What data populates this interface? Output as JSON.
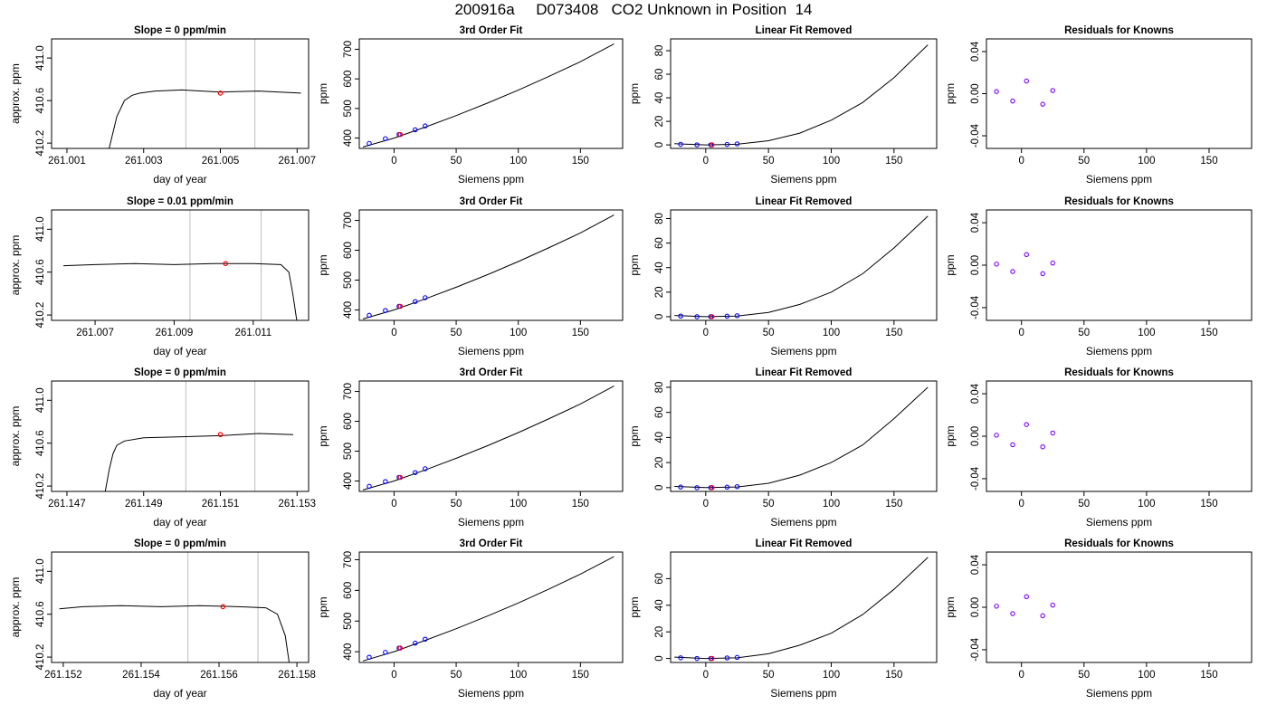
{
  "figure": {
    "title": "200916a     D073408   CO2 Unknown in Position  14"
  },
  "colors": {
    "axes": "#000000",
    "trace": "#000000",
    "known_points": "#0000ff",
    "unknown_point": "#ff0000",
    "residual_points": "#8000ff",
    "window_lines": "#bebebe"
  },
  "chart_data": [
    {
      "type": "line",
      "row": 1,
      "column": 1,
      "title": "Slope =  0  ppm/min",
      "xlabel": "day of year",
      "ylabel": "approx. ppm",
      "x_ticks": [
        "261.001",
        "261.003",
        "261.005",
        "261.007"
      ],
      "x_tick_values": [
        261.001,
        261.003,
        261.005,
        261.007
      ],
      "y_ticks": [
        "410.2",
        "410.6",
        "411.0"
      ],
      "y_tick_values": [
        410.2,
        410.6,
        411.0
      ],
      "xlim": [
        261.0006,
        261.0073
      ],
      "ylim": [
        410.15,
        411.18
      ],
      "grid": false,
      "window_x": [
        261.0041,
        261.0059
      ],
      "unknown_point": {
        "x": 261.005,
        "y": 410.67
      },
      "trace": {
        "x": [
          261.0021,
          261.0023,
          261.0025,
          261.0027,
          261.0029,
          261.0033,
          261.004,
          261.005,
          261.006,
          261.0071
        ],
        "y": [
          410.15,
          410.45,
          410.6,
          410.65,
          410.67,
          410.69,
          410.7,
          410.68,
          410.69,
          410.67
        ]
      }
    },
    {
      "type": "line",
      "row": 1,
      "column": 2,
      "title": "3rd Order Fit",
      "xlabel": "Siemens ppm",
      "ylabel": "ppm",
      "x_ticks": [
        "0",
        "50",
        "100",
        "150"
      ],
      "x_tick_values": [
        0,
        50,
        100,
        150
      ],
      "y_ticks": [
        "400",
        "500",
        "600",
        "700"
      ],
      "y_tick_values": [
        400,
        500,
        600,
        700
      ],
      "xlim": [
        -28,
        184
      ],
      "ylim": [
        365,
        735
      ],
      "grid": false,
      "fit_curve": {
        "x": [
          -25,
          0,
          25,
          50,
          75,
          100,
          125,
          150,
          177
        ],
        "y": [
          370,
          400,
          437,
          476,
          518,
          562,
          609,
          658,
          718
        ]
      },
      "known_points": {
        "x": [
          -20,
          -7,
          4,
          17,
          25
        ],
        "y": [
          382,
          398,
          412,
          428,
          441
        ]
      },
      "unknown_point": {
        "x": 5,
        "y": 412
      }
    },
    {
      "type": "line",
      "row": 1,
      "column": 3,
      "title": "Linear Fit Removed",
      "xlabel": "Siemens ppm",
      "ylabel": "ppm",
      "x_ticks": [
        "0",
        "50",
        "100",
        "150"
      ],
      "x_tick_values": [
        0,
        50,
        100,
        150
      ],
      "y_ticks": [
        "0",
        "20",
        "40",
        "60",
        "80"
      ],
      "y_tick_values": [
        0,
        20,
        40,
        60,
        80
      ],
      "xlim": [
        -28,
        184
      ],
      "ylim": [
        -3,
        90
      ],
      "grid": false,
      "fit_curve": {
        "x": [
          -25,
          0,
          25,
          50,
          75,
          100,
          125,
          150,
          177
        ],
        "y": [
          1,
          0,
          0.5,
          3.5,
          10,
          21,
          36,
          57,
          85
        ]
      },
      "known_points": {
        "x": [
          -20,
          -7,
          4,
          17,
          25
        ],
        "y": [
          0.5,
          0,
          0,
          0.4,
          0.8
        ]
      },
      "unknown_point": {
        "x": 5,
        "y": 0
      }
    },
    {
      "type": "scatter",
      "row": 1,
      "column": 4,
      "title": "Residuals for Knowns",
      "xlabel": "Siemens ppm",
      "ylabel": "ppm",
      "x_ticks": [
        "0",
        "50",
        "100",
        "150"
      ],
      "x_tick_values": [
        0,
        50,
        100,
        150
      ],
      "y_ticks": [
        "-0.04",
        "0.00",
        "0.04"
      ],
      "y_tick_values": [
        -0.04,
        0.0,
        0.04
      ],
      "xlim": [
        -28,
        184
      ],
      "ylim": [
        -0.052,
        0.052
      ],
      "grid": false,
      "points": {
        "x": [
          -20,
          -7,
          4,
          17,
          25
        ],
        "y": [
          0.002,
          -0.007,
          0.012,
          -0.01,
          0.003
        ]
      }
    },
    {
      "type": "line",
      "row": 2,
      "column": 1,
      "title": "Slope =  0.01  ppm/min",
      "xlabel": "day of year",
      "ylabel": "approx. ppm",
      "x_ticks": [
        "261.007",
        "261.009",
        "261.011"
      ],
      "x_tick_values": [
        261.007,
        261.009,
        261.011
      ],
      "y_ticks": [
        "410.2",
        "410.6",
        "411.0"
      ],
      "y_tick_values": [
        410.2,
        410.6,
        411.0
      ],
      "xlim": [
        261.0059,
        261.0124
      ],
      "ylim": [
        410.15,
        411.18
      ],
      "grid": false,
      "window_x": [
        261.0094,
        261.0112
      ],
      "unknown_point": {
        "x": 261.0103,
        "y": 410.68
      },
      "trace": {
        "x": [
          261.0062,
          261.007,
          261.008,
          261.009,
          261.01,
          261.011,
          261.0117,
          261.0119,
          261.012,
          261.0121
        ],
        "y": [
          410.66,
          410.67,
          410.68,
          410.67,
          410.68,
          410.68,
          410.67,
          410.6,
          410.4,
          410.15
        ]
      }
    },
    {
      "type": "line",
      "row": 2,
      "column": 2,
      "title": "3rd Order Fit",
      "xlabel": "Siemens ppm",
      "ylabel": "ppm",
      "x_ticks": [
        "0",
        "50",
        "100",
        "150"
      ],
      "x_tick_values": [
        0,
        50,
        100,
        150
      ],
      "y_ticks": [
        "400",
        "500",
        "600",
        "700"
      ],
      "y_tick_values": [
        400,
        500,
        600,
        700
      ],
      "xlim": [
        -28,
        184
      ],
      "ylim": [
        365,
        735
      ],
      "grid": false,
      "fit_curve": {
        "x": [
          -25,
          0,
          25,
          50,
          75,
          100,
          125,
          150,
          177
        ],
        "y": [
          370,
          400,
          437,
          476,
          518,
          562,
          609,
          658,
          718
        ]
      },
      "known_points": {
        "x": [
          -20,
          -7,
          4,
          17,
          25
        ],
        "y": [
          382,
          398,
          412,
          428,
          441
        ]
      },
      "unknown_point": {
        "x": 5,
        "y": 412
      }
    },
    {
      "type": "line",
      "row": 2,
      "column": 3,
      "title": "Linear Fit Removed",
      "xlabel": "Siemens ppm",
      "ylabel": "ppm",
      "x_ticks": [
        "0",
        "50",
        "100",
        "150"
      ],
      "x_tick_values": [
        0,
        50,
        100,
        150
      ],
      "y_ticks": [
        "0",
        "20",
        "40",
        "60",
        "80"
      ],
      "y_tick_values": [
        0,
        20,
        40,
        60,
        80
      ],
      "xlim": [
        -28,
        184
      ],
      "ylim": [
        -3,
        87
      ],
      "grid": false,
      "fit_curve": {
        "x": [
          -25,
          0,
          25,
          50,
          75,
          100,
          125,
          150,
          177
        ],
        "y": [
          1,
          0,
          0.5,
          3.5,
          10,
          20,
          35,
          56,
          82
        ]
      },
      "known_points": {
        "x": [
          -20,
          -7,
          4,
          17,
          25
        ],
        "y": [
          0.5,
          0,
          0,
          0.4,
          0.8
        ]
      },
      "unknown_point": {
        "x": 5,
        "y": 0
      }
    },
    {
      "type": "scatter",
      "row": 2,
      "column": 4,
      "title": "Residuals for Knowns",
      "xlabel": "Siemens ppm",
      "ylabel": "ppm",
      "x_ticks": [
        "0",
        "50",
        "100",
        "150"
      ],
      "x_tick_values": [
        0,
        50,
        100,
        150
      ],
      "y_ticks": [
        "-0.04",
        "0.00",
        "0.04"
      ],
      "y_tick_values": [
        -0.04,
        0.0,
        0.04
      ],
      "xlim": [
        -28,
        184
      ],
      "ylim": [
        -0.052,
        0.052
      ],
      "grid": false,
      "points": {
        "x": [
          -20,
          -7,
          4,
          17,
          25
        ],
        "y": [
          0.001,
          -0.006,
          0.01,
          -0.008,
          0.002
        ]
      }
    },
    {
      "type": "line",
      "row": 3,
      "column": 1,
      "title": "Slope =  0  ppm/min",
      "xlabel": "day of year",
      "ylabel": "approx. ppm",
      "x_ticks": [
        "261.147",
        "261.149",
        "261.151",
        "261.153"
      ],
      "x_tick_values": [
        261.147,
        261.149,
        261.151,
        261.153
      ],
      "y_ticks": [
        "410.2",
        "410.6",
        "411.0"
      ],
      "y_tick_values": [
        410.2,
        410.6,
        411.0
      ],
      "xlim": [
        261.1466,
        261.1533
      ],
      "ylim": [
        410.15,
        411.18
      ],
      "grid": false,
      "window_x": [
        261.1501,
        261.1519
      ],
      "unknown_point": {
        "x": 261.151,
        "y": 410.68
      },
      "trace": {
        "x": [
          261.148,
          261.1481,
          261.1482,
          261.1483,
          261.1485,
          261.149,
          261.15,
          261.151,
          261.152,
          261.1529
        ],
        "y": [
          410.15,
          410.35,
          410.5,
          410.58,
          410.62,
          410.65,
          410.66,
          410.67,
          410.69,
          410.68
        ]
      }
    },
    {
      "type": "line",
      "row": 3,
      "column": 2,
      "title": "3rd Order Fit",
      "xlabel": "Siemens ppm",
      "ylabel": "ppm",
      "x_ticks": [
        "0",
        "50",
        "100",
        "150"
      ],
      "x_tick_values": [
        0,
        50,
        100,
        150
      ],
      "y_ticks": [
        "400",
        "500",
        "600",
        "700"
      ],
      "y_tick_values": [
        400,
        500,
        600,
        700
      ],
      "xlim": [
        -28,
        184
      ],
      "ylim": [
        365,
        735
      ],
      "grid": false,
      "fit_curve": {
        "x": [
          -25,
          0,
          25,
          50,
          75,
          100,
          125,
          150,
          177
        ],
        "y": [
          370,
          400,
          437,
          476,
          518,
          562,
          609,
          658,
          718
        ]
      },
      "known_points": {
        "x": [
          -20,
          -7,
          4,
          17,
          25
        ],
        "y": [
          382,
          398,
          412,
          428,
          441
        ]
      },
      "unknown_point": {
        "x": 5,
        "y": 412
      }
    },
    {
      "type": "line",
      "row": 3,
      "column": 3,
      "title": "Linear Fit Removed",
      "xlabel": "Siemens ppm",
      "ylabel": "ppm",
      "x_ticks": [
        "0",
        "50",
        "100",
        "150"
      ],
      "x_tick_values": [
        0,
        50,
        100,
        150
      ],
      "y_ticks": [
        "0",
        "20",
        "40",
        "60",
        "80"
      ],
      "y_tick_values": [
        0,
        20,
        40,
        60,
        80
      ],
      "xlim": [
        -28,
        184
      ],
      "ylim": [
        -3,
        85
      ],
      "grid": false,
      "fit_curve": {
        "x": [
          -25,
          0,
          25,
          50,
          75,
          100,
          125,
          150,
          177
        ],
        "y": [
          1,
          0,
          0.5,
          3.5,
          10,
          20,
          34,
          55,
          80
        ]
      },
      "known_points": {
        "x": [
          -20,
          -7,
          4,
          17,
          25
        ],
        "y": [
          0.5,
          0,
          0,
          0.4,
          0.8
        ]
      },
      "unknown_point": {
        "x": 5,
        "y": 0
      }
    },
    {
      "type": "scatter",
      "row": 3,
      "column": 4,
      "title": "Residuals for Knowns",
      "xlabel": "Siemens ppm",
      "ylabel": "ppm",
      "x_ticks": [
        "0",
        "50",
        "100",
        "150"
      ],
      "x_tick_values": [
        0,
        50,
        100,
        150
      ],
      "y_ticks": [
        "-0.04",
        "0.00",
        "0.04"
      ],
      "y_tick_values": [
        -0.04,
        0.0,
        0.04
      ],
      "xlim": [
        -28,
        184
      ],
      "ylim": [
        -0.052,
        0.052
      ],
      "grid": false,
      "points": {
        "x": [
          -20,
          -7,
          4,
          17,
          25
        ],
        "y": [
          0.001,
          -0.008,
          0.011,
          -0.01,
          0.003
        ]
      }
    },
    {
      "type": "line",
      "row": 4,
      "column": 1,
      "title": "Slope =  0  ppm/min",
      "xlabel": "day of year",
      "ylabel": "approx. ppm",
      "x_ticks": [
        "261.152",
        "261.154",
        "261.156",
        "261.158"
      ],
      "x_tick_values": [
        261.152,
        261.154,
        261.156,
        261.158
      ],
      "y_ticks": [
        "410.2",
        "410.6",
        "411.0"
      ],
      "y_tick_values": [
        410.2,
        410.6,
        411.0
      ],
      "xlim": [
        261.1517,
        261.1583
      ],
      "ylim": [
        410.15,
        411.18
      ],
      "grid": false,
      "window_x": [
        261.1552,
        261.157
      ],
      "unknown_point": {
        "x": 261.1561,
        "y": 410.67
      },
      "trace": {
        "x": [
          261.1519,
          261.1525,
          261.1535,
          261.1545,
          261.1555,
          261.1565,
          261.1572,
          261.1575,
          261.1577,
          261.1578
        ],
        "y": [
          410.65,
          410.67,
          410.68,
          410.67,
          410.68,
          410.67,
          410.66,
          410.6,
          410.4,
          410.15
        ]
      }
    },
    {
      "type": "line",
      "row": 4,
      "column": 2,
      "title": "3rd Order Fit",
      "xlabel": "Siemens ppm",
      "ylabel": "ppm",
      "x_ticks": [
        "0",
        "50",
        "100",
        "150"
      ],
      "x_tick_values": [
        0,
        50,
        100,
        150
      ],
      "y_ticks": [
        "400",
        "500",
        "600",
        "700"
      ],
      "y_tick_values": [
        400,
        500,
        600,
        700
      ],
      "xlim": [
        -28,
        184
      ],
      "ylim": [
        365,
        725
      ],
      "grid": false,
      "fit_curve": {
        "x": [
          -25,
          0,
          25,
          50,
          75,
          100,
          125,
          150,
          177
        ],
        "y": [
          370,
          400,
          437,
          475,
          516,
          559,
          605,
          653,
          710
        ]
      },
      "known_points": {
        "x": [
          -20,
          -7,
          4,
          17,
          25
        ],
        "y": [
          382,
          398,
          412,
          428,
          441
        ]
      },
      "unknown_point": {
        "x": 5,
        "y": 412
      }
    },
    {
      "type": "line",
      "row": 4,
      "column": 3,
      "title": "Linear Fit Removed",
      "xlabel": "Siemens ppm",
      "ylabel": "ppm",
      "x_ticks": [
        "0",
        "50",
        "100",
        "150"
      ],
      "x_tick_values": [
        0,
        50,
        100,
        150
      ],
      "y_ticks": [
        "0",
        "20",
        "40",
        "60"
      ],
      "y_tick_values": [
        0,
        20,
        40,
        60
      ],
      "xlim": [
        -28,
        184
      ],
      "ylim": [
        -3,
        80
      ],
      "grid": false,
      "fit_curve": {
        "x": [
          -25,
          0,
          25,
          50,
          75,
          100,
          125,
          150,
          177
        ],
        "y": [
          1,
          0,
          0.5,
          3.5,
          10,
          19,
          33,
          52,
          76
        ]
      },
      "known_points": {
        "x": [
          -20,
          -7,
          4,
          17,
          25
        ],
        "y": [
          0.5,
          0,
          0,
          0.4,
          0.8
        ]
      },
      "unknown_point": {
        "x": 5,
        "y": 0
      }
    },
    {
      "type": "scatter",
      "row": 4,
      "column": 4,
      "title": "Residuals for Knowns",
      "xlabel": "Siemens ppm",
      "ylabel": "ppm",
      "x_ticks": [
        "0",
        "50",
        "100",
        "150"
      ],
      "x_tick_values": [
        0,
        50,
        100,
        150
      ],
      "y_ticks": [
        "-0.04",
        "0.00",
        "0.04"
      ],
      "y_tick_values": [
        -0.04,
        0.0,
        0.04
      ],
      "xlim": [
        -28,
        184
      ],
      "ylim": [
        -0.052,
        0.052
      ],
      "grid": false,
      "points": {
        "x": [
          -20,
          -7,
          4,
          17,
          25
        ],
        "y": [
          0.001,
          -0.006,
          0.01,
          -0.008,
          0.002
        ]
      }
    }
  ]
}
